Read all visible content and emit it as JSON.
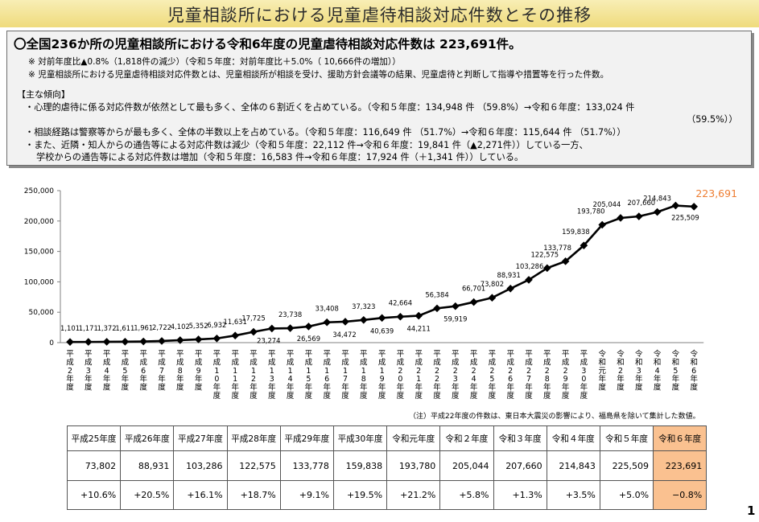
{
  "title": "児童相談所における児童虐待相談対応件数とその推移",
  "summary": {
    "headline": "〇全国236か所の児童相談所における令和6年度の児童虐待相談対応件数は 223,691件。",
    "note1": "※ 対前年度比▲0.8%（1,818件の減少）（令和５年度：対前年度比＋5.0%（ 10,666件の増加））",
    "note2": "※ 児童相談所における児童虐待相談対応件数とは、児童相談所が相談を受け、援助方針会議等の結果、児童虐待と判断して指導や措置等を行った件数。",
    "trend_heading": "【主な傾向】",
    "item1": "・心理的虐待に係る対応件数が依然として最も多く、全体の６割近くを占めている。（令和５年度：134,948 件 （59.8%）→令和６年度：133,024 件",
    "item1b": "（59.5%））",
    "item2": "・相談経路は警察等からが最も多く、全体の半数以上を占めている。（令和５年度：116,649 件 （51.7%）→令和６年度：115,644 件 （51.7%））",
    "item3": "・また、近隣・知人からの通告等による対応件数は減少（令和５年度：22,112 件→令和６年度：19,841 件（▲2,271件））している一方、",
    "item3b": "学校からの通告等による対応件数は増加（令和５年度：16,583 件→令和６年度：17,924 件（＋1,341 件））している。"
  },
  "chart_data": {
    "type": "line",
    "categories": [
      "平成2年度",
      "平成3年度",
      "平成4年度",
      "平成5年度",
      "平成6年度",
      "平成7年度",
      "平成8年度",
      "平成9年度",
      "平成10年度",
      "平成11年度",
      "平成12年度",
      "平成13年度",
      "平成14年度",
      "平成15年度",
      "平成16年度",
      "平成17年度",
      "平成18年度",
      "平成19年度",
      "平成20年度",
      "平成21年度",
      "平成22年度",
      "平成23年度",
      "平成24年度",
      "平成25年度",
      "平成26年度",
      "平成27年度",
      "平成28年度",
      "平成29年度",
      "平成30年度",
      "令和元年度",
      "令和2年度",
      "令和3年度",
      "令和4年度",
      "令和5年度",
      "令和6年度"
    ],
    "x_tick_labels": [
      "平成2年度",
      "平成3年度",
      "平成4年度",
      "平成5年度",
      "平成6年度",
      "平成7年度",
      "平成8年度",
      "平成9年度",
      "平成10年度",
      "平成11年度",
      "平成12年度",
      "平成13年度",
      "平成14年度",
      "平成15年度",
      "平成16年度",
      "平成17年度",
      "平成18年度",
      "平成19年度",
      "平成20年度",
      "平成21年度",
      "平成22年度",
      "平成23年度",
      "平成24年度",
      "平成25年度",
      "平成26年度",
      "平成27年度",
      "平成28年度",
      "平成29年度",
      "平成30年度",
      "令和元年度",
      "令和2年度",
      "令和3年度",
      "令和4年度",
      "令和5年度",
      "令和6年度"
    ],
    "values": [
      1101,
      1171,
      1372,
      1611,
      1961,
      2722,
      4102,
      5352,
      6932,
      11631,
      17725,
      23274,
      23738,
      26569,
      33408,
      34472,
      37323,
      40639,
      42664,
      44211,
      56384,
      59919,
      66701,
      73802,
      88931,
      103286,
      122575,
      133778,
      159838,
      193780,
      205044,
      207660,
      214843,
      225509,
      223691
    ],
    "labels": [
      "1,101",
      "1,171",
      "1,372",
      "1,611",
      "1,961",
      "2,722",
      "4,102",
      "5,352",
      "6,932",
      "11,631",
      "17,725",
      "23,274",
      "23,738",
      "26,569",
      "33,408",
      "34,472",
      "37,323",
      "40,639",
      "42,664",
      "44,211",
      "56,384",
      "59,919",
      "66,701",
      "73,802",
      "88,931",
      "103,286",
      "122,575",
      "133,778",
      "159,838",
      "193,780",
      "205,044",
      "207,660",
      "214,843",
      "225,509",
      "223,691"
    ],
    "ylim": [
      0,
      250000
    ],
    "yticks": [
      "0",
      "50,000",
      "100,000",
      "150,000",
      "200,000",
      "250,000"
    ],
    "highlight_color": "#ee7d31",
    "line_color": "#000000",
    "grid": false,
    "footnote": "（注）平成22年度の件数は、東日本大震災の影響により、福島県を除いて集計した数値。"
  },
  "table": {
    "headers": [
      "平成25年度",
      "平成26年度",
      "平成27年度",
      "平成28年度",
      "平成29年度",
      "平成30年度",
      "令和元年度",
      "令和２年度",
      "令和３年度",
      "令和４年度",
      "令和５年度",
      "令和６年度"
    ],
    "counts": [
      "73,802",
      "88,931",
      "103,286",
      "122,575",
      "133,778",
      "159,838",
      "193,780",
      "205,044",
      "207,660",
      "214,843",
      "225,509",
      "223,691"
    ],
    "changes": [
      "+10.6%",
      "+20.5%",
      "+16.1%",
      "+18.7%",
      "+9.1%",
      "+19.5%",
      "+21.2%",
      "+5.8%",
      "+1.3%",
      "+3.5%",
      "+5.0%",
      "−0.8%"
    ],
    "highlight_color": "#fac190"
  },
  "page_number": "1"
}
